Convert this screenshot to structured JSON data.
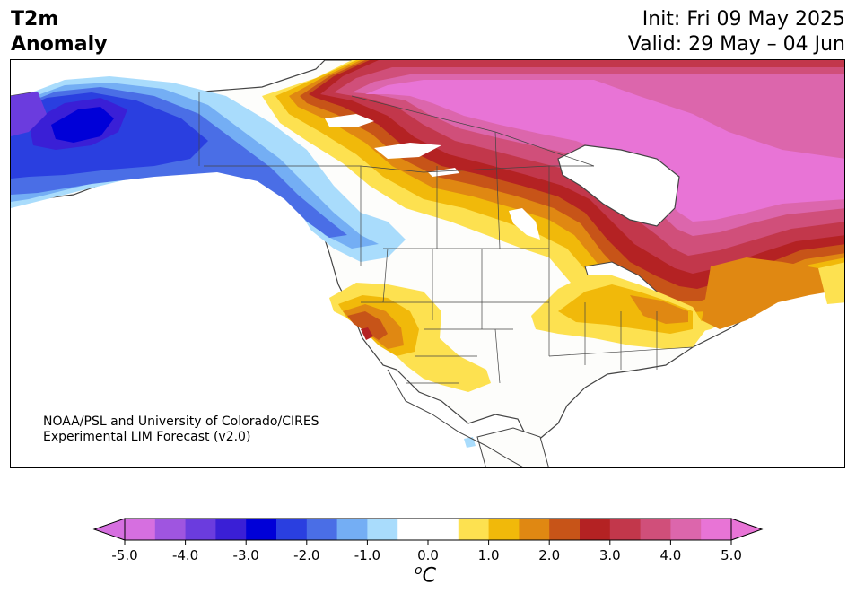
{
  "header": {
    "title_line1": "T2m",
    "title_line2": "Anomaly",
    "init": "Init: Fri 09 May 2025",
    "valid": "Valid: 29 May – 04 Jun"
  },
  "credit": {
    "line1": "NOAA/PSL and University of Colorado/CIRES",
    "line2": "Experimental LIM Forecast (v2.0)"
  },
  "colorbar": {
    "ticks": [
      "-5.0",
      "-4.0",
      "-3.0",
      "-2.0",
      "-1.0",
      "0.0",
      "1.0",
      "2.0",
      "3.0",
      "4.0",
      "5.0"
    ],
    "unit_o": "o",
    "unit_c": "C",
    "colors": [
      "#d66fe0",
      "#9f55e0",
      "#6b3cde",
      "#3a1fd6",
      "#0000d8",
      "#2a3fe0",
      "#4a6ee6",
      "#74aef4",
      "#a9dcfc",
      "#ffffff",
      "#ffffff",
      "#fde150",
      "#f1b90a",
      "#e08812",
      "#c75418",
      "#b42223",
      "#c2374b",
      "#d04f7a",
      "#dc66ac",
      "#e874d6"
    ],
    "under_color": "#d66fe0",
    "over_color": "#e874d6"
  },
  "map": {
    "land_color": "#fdfdfb",
    "border_color": "#444444"
  }
}
